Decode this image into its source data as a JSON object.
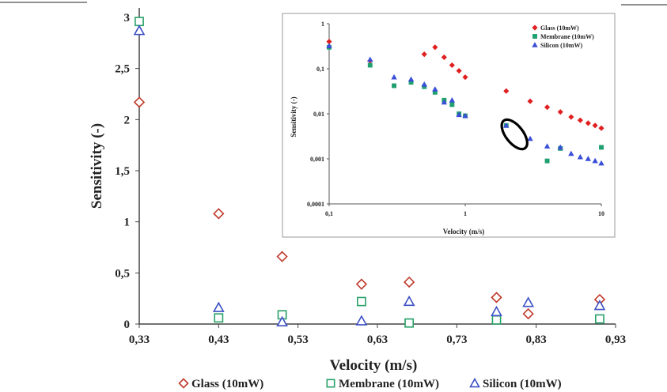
{
  "chart_data": [
    {
      "type": "scatter",
      "xlabel": "Velocity (m/s)",
      "ylabel": "Sensitivity (-)",
      "xlim": [
        0.33,
        0.93
      ],
      "ylim": [
        0,
        3
      ],
      "xticks": [
        "0,33",
        "0,43",
        "0,53",
        "0,63",
        "0,73",
        "0,83",
        "0,93"
      ],
      "yticks": [
        "0",
        "0,5",
        "1",
        "1,5",
        "2",
        "2,5",
        "3"
      ],
      "legend_position": "bottom",
      "series": [
        {
          "name": "Glass (10mW)",
          "marker": "diamond",
          "color": "#c0392b",
          "points": [
            [
              0.33,
              2.17
            ],
            [
              0.43,
              1.08
            ],
            [
              0.51,
              0.66
            ],
            [
              0.61,
              0.39
            ],
            [
              0.67,
              0.41
            ],
            [
              0.78,
              0.26
            ],
            [
              0.82,
              0.1
            ],
            [
              0.91,
              0.24
            ]
          ]
        },
        {
          "name": "Membrane (10mW)",
          "marker": "square",
          "color": "#27a168",
          "points": [
            [
              0.33,
              2.96
            ],
            [
              0.43,
              0.06
            ],
            [
              0.51,
              0.09
            ],
            [
              0.61,
              0.22
            ],
            [
              0.67,
              0.01
            ],
            [
              0.78,
              0.04
            ],
            [
              0.82,
              null
            ],
            [
              0.91,
              0.05
            ]
          ]
        },
        {
          "name": "Silicon (10mW)",
          "marker": "triangle",
          "color": "#3b4fc4",
          "points": [
            [
              0.33,
              2.87
            ],
            [
              0.43,
              0.16
            ],
            [
              0.51,
              0.02
            ],
            [
              0.61,
              0.03
            ],
            [
              0.67,
              0.22
            ],
            [
              0.78,
              0.12
            ],
            [
              0.82,
              0.21
            ],
            [
              0.91,
              0.18
            ]
          ]
        }
      ]
    },
    {
      "type": "scatter",
      "inset": true,
      "xlabel": "Velocity (m/s)",
      "ylabel": "Sensitivity (-)",
      "xscale": "log",
      "yscale": "log",
      "xlim": [
        0.1,
        10
      ],
      "ylim": [
        0.0001,
        1
      ],
      "xticks": [
        "0,1",
        "1",
        "10"
      ],
      "yticks": [
        "0,0001",
        "0,001",
        "0,01",
        "0,1",
        "1"
      ],
      "legend_position": "top-right",
      "series": [
        {
          "name": "Glass (10mW)",
          "marker": "diamond",
          "color": "#e02020",
          "points": [
            [
              0.1,
              0.4
            ],
            [
              0.2,
              0.15
            ],
            [
              0.5,
              0.21
            ],
            [
              0.6,
              0.3
            ],
            [
              0.7,
              0.18
            ],
            [
              0.8,
              0.12
            ],
            [
              0.9,
              0.09
            ],
            [
              1.0,
              0.065
            ],
            [
              2.0,
              0.032
            ],
            [
              3.0,
              0.019
            ],
            [
              4.0,
              0.014
            ],
            [
              5.0,
              0.011
            ],
            [
              6.0,
              0.0085
            ],
            [
              7.0,
              0.0072
            ],
            [
              8.0,
              0.0062
            ],
            [
              9.0,
              0.0055
            ],
            [
              10.0,
              0.0048
            ]
          ]
        },
        {
          "name": "Membrane (10mW)",
          "marker": "square",
          "color": "#20a070",
          "points": [
            [
              0.1,
              0.3
            ],
            [
              0.2,
              0.12
            ],
            [
              0.3,
              0.042
            ],
            [
              0.4,
              0.05
            ],
            [
              0.5,
              0.04
            ],
            [
              0.6,
              0.03
            ],
            [
              0.7,
              0.02
            ],
            [
              0.8,
              0.016
            ],
            [
              0.9,
              0.01
            ],
            [
              1.0,
              0.009
            ],
            [
              2.0,
              0.0055
            ],
            [
              4.0,
              0.0009
            ],
            [
              5.0,
              0.0017
            ],
            [
              10.0,
              0.0018
            ]
          ]
        },
        {
          "name": "Silicon (10mW)",
          "marker": "triangle",
          "color": "#3a4ed8",
          "points": [
            [
              0.1,
              0.32
            ],
            [
              0.2,
              0.16
            ],
            [
              0.3,
              0.065
            ],
            [
              0.4,
              0.058
            ],
            [
              0.5,
              0.045
            ],
            [
              0.6,
              0.035
            ],
            [
              0.7,
              0.018
            ],
            [
              0.8,
              0.02
            ],
            [
              0.9,
              0.0095
            ],
            [
              1.0,
              0.009
            ],
            [
              2.0,
              0.0055
            ],
            [
              3.0,
              0.0028
            ],
            [
              4.0,
              0.0019
            ],
            [
              5.0,
              0.0018
            ],
            [
              6.0,
              0.0013
            ],
            [
              7.0,
              0.0011
            ],
            [
              8.0,
              0.001
            ],
            [
              9.0,
              0.0009
            ],
            [
              10.0,
              0.0008
            ]
          ]
        }
      ],
      "annotation": {
        "shape": "ellipse",
        "x": 2.3,
        "y": 0.0035
      }
    }
  ]
}
